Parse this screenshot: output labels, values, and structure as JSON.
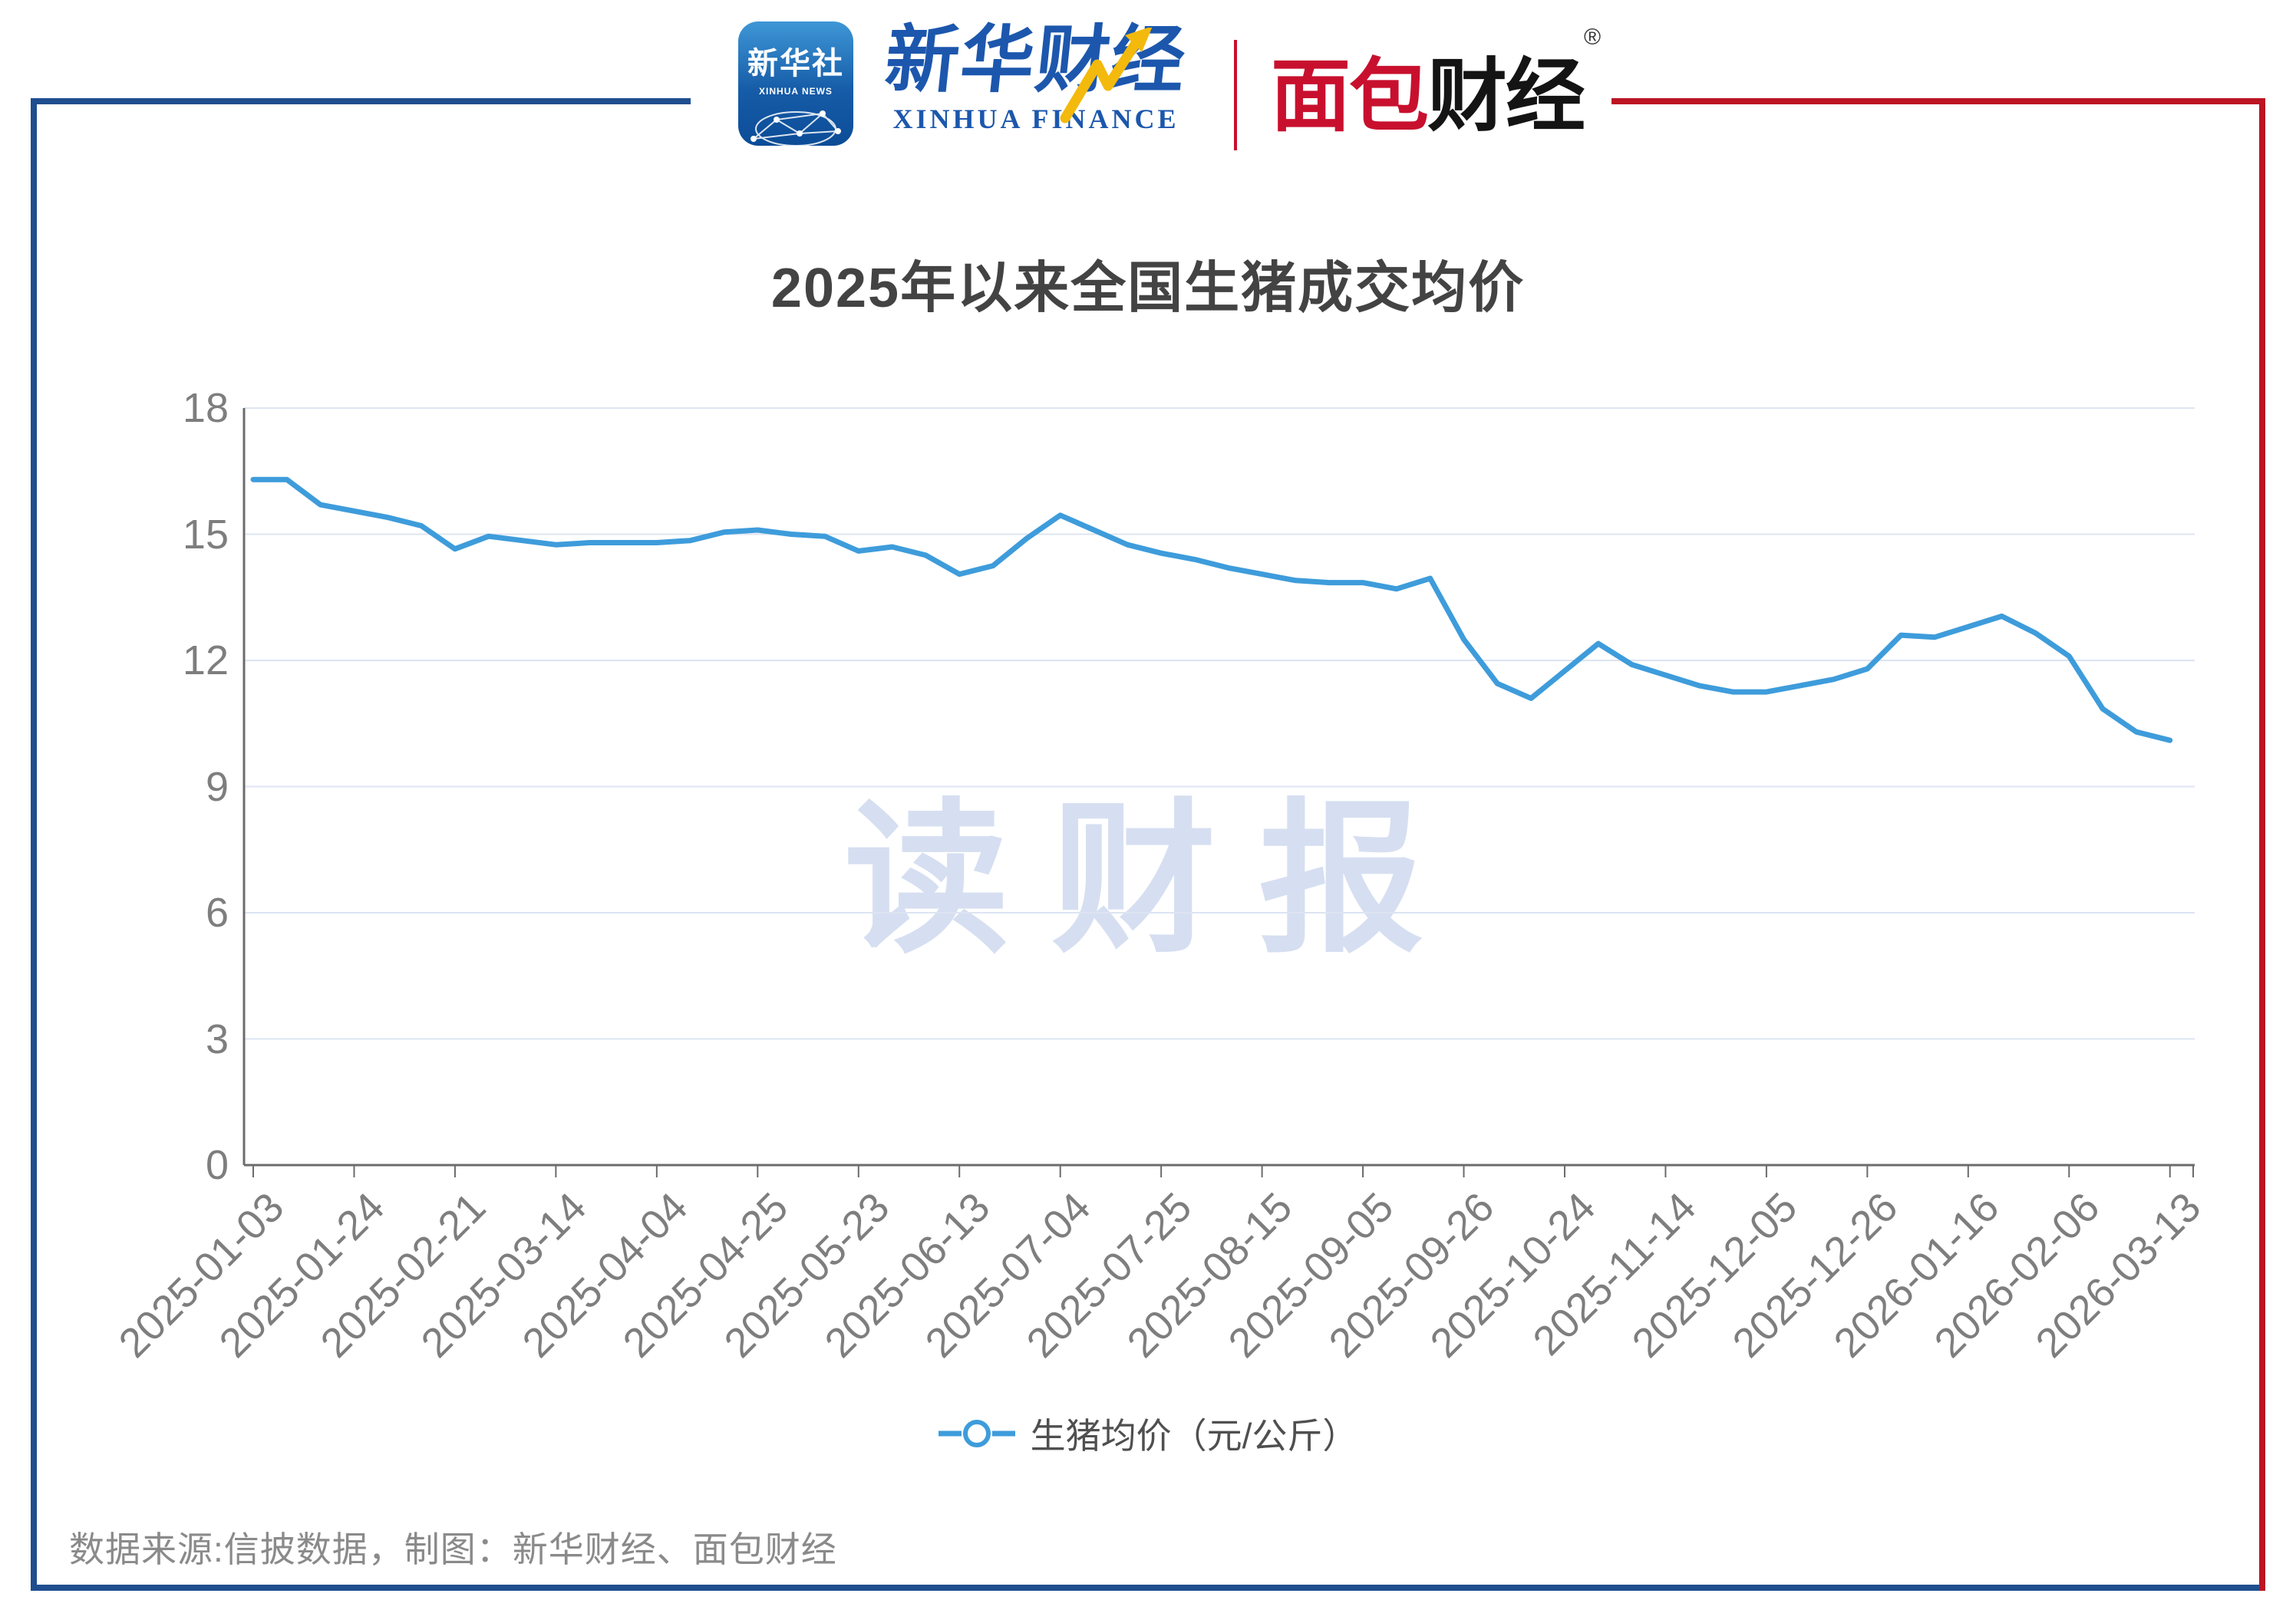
{
  "header": {
    "xinhua_news_icon": {
      "line1": "新华社",
      "line2": "XINHUA NEWS"
    },
    "xinhua_finance": {
      "cn": "新华财经",
      "en": "XINHUA FINANCE"
    },
    "mianbao_logo": {
      "part_red": "面包",
      "part_black": "财经",
      "reg_mark": "®"
    }
  },
  "title": "2025年以来全国生猪成交均价",
  "watermark": "读财报",
  "legend": {
    "label": "生猪均价（元/公斤）"
  },
  "footer": "数据来源:信披数据，制图：新华财经、面包财经",
  "colors": {
    "frame_blue": "#1F4E8F",
    "frame_red": "#BC1423",
    "line_blue": "#3E9CDB",
    "grid": "#DDE4F2",
    "axis": "#6B6B6B",
    "tick_text": "#7E7E7E",
    "title_text": "#434343",
    "watermark_text": "#D6DFF1",
    "footer_text": "#8A8A8A"
  },
  "chart_data": {
    "type": "line",
    "title": "2025年以来全国生猪成交均价",
    "series_name": "生猪均价（元/公斤）",
    "unit": "元/公斤",
    "ylim": [
      0,
      18
    ],
    "y_ticks": [
      0,
      3,
      6,
      9,
      12,
      15,
      18
    ],
    "grid": "on",
    "legend_position": "bottom",
    "tick_every": 3,
    "x_tick_labels": [
      "2025-01-03",
      "2025-01-24",
      "2025-02-21",
      "2025-03-14",
      "2025-04-04",
      "2025-04-25",
      "2025-05-23",
      "2025-06-13",
      "2025-07-04",
      "2025-07-25",
      "2025-08-15",
      "2025-09-05",
      "2025-09-26",
      "2025-10-24",
      "2025-11-14",
      "2025-12-05",
      "2025-12-26",
      "2026-01-16",
      "2026-02-06",
      "2026-03-13"
    ],
    "values": [
      16.3,
      16.3,
      15.7,
      15.55,
      15.4,
      15.2,
      14.65,
      14.95,
      14.85,
      14.75,
      14.8,
      14.8,
      14.8,
      14.85,
      15.05,
      15.1,
      15.0,
      14.95,
      14.6,
      14.7,
      14.5,
      14.05,
      14.25,
      14.9,
      15.45,
      15.1,
      14.75,
      14.55,
      14.4,
      14.2,
      14.05,
      13.9,
      13.85,
      13.85,
      13.7,
      13.95,
      12.5,
      11.45,
      11.1,
      11.75,
      12.4,
      11.9,
      11.65,
      11.4,
      11.25,
      11.25,
      11.4,
      11.55,
      11.8,
      12.6,
      12.55,
      12.8,
      13.05,
      12.65,
      12.1,
      10.85,
      10.3,
      10.1
    ]
  }
}
